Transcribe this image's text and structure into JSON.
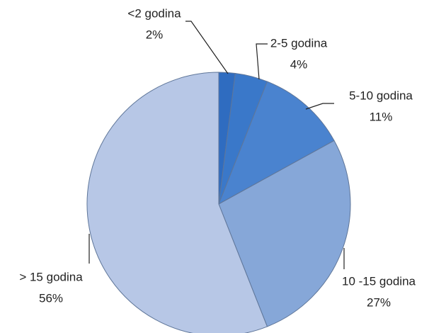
{
  "chart_data": {
    "type": "pie",
    "categories": [
      "<2 godina",
      "2-5 godina",
      "5-10 godina",
      "10 -15 godina",
      "> 15 godina"
    ],
    "values": [
      2,
      4,
      11,
      27,
      56
    ],
    "value_labels": [
      "2%",
      "4%",
      "11%",
      "27%",
      "56%"
    ],
    "colors": [
      "#2f6cc0",
      "#3a78c9",
      "#4a83cf",
      "#86a7d8",
      "#b7c7e6"
    ]
  }
}
